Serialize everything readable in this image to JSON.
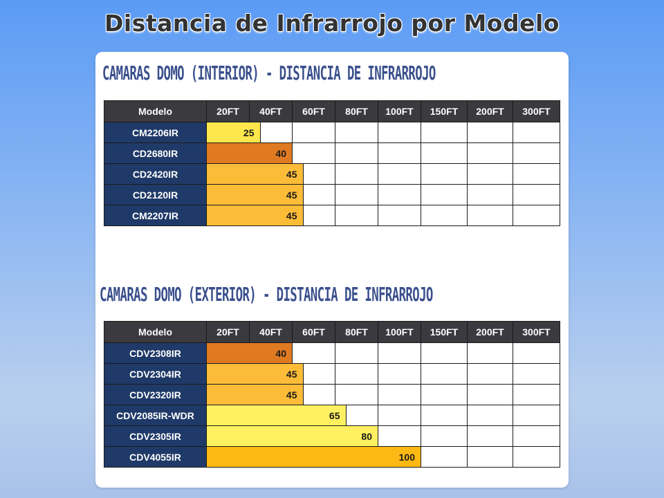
{
  "page_title": "Distancia de Infrarrojo por Modelo",
  "chart_data": [
    {
      "type": "bar",
      "title": "CAMARAS DOMO (INTERIOR) - DISTANCIA DE INFRARROJO",
      "corner_label": "Modelo",
      "columns": [
        "20FT",
        "40FT",
        "60FT",
        "80FT",
        "100FT",
        "150FT",
        "200FT",
        "300FT"
      ],
      "column_values": [
        20,
        40,
        60,
        80,
        100,
        150,
        200,
        300
      ],
      "categories": [
        "CM2206IR",
        "CD2680IR",
        "CD2420IR",
        "CD2120IR",
        "CM2207IR"
      ],
      "values": [
        25,
        40,
        45,
        45,
        45
      ],
      "colors": [
        "#fde74c",
        "#e07a22",
        "#fcbc38",
        "#fcbc38",
        "#fcbc38"
      ]
    },
    {
      "type": "bar",
      "title": "CAMARAS DOMO (EXTERIOR) - DISTANCIA DE INFRARROJO",
      "corner_label": "Modelo",
      "columns": [
        "20FT",
        "40FT",
        "60FT",
        "80FT",
        "100FT",
        "150FT",
        "200FT",
        "300FT"
      ],
      "column_values": [
        20,
        40,
        60,
        80,
        100,
        150,
        200,
        300
      ],
      "categories": [
        "CDV2308IR",
        "CDV2304IR",
        "CDV2320IR",
        "CDV2085IR-WDR",
        "CDV2305IR",
        "CDV4055IR"
      ],
      "values": [
        40,
        45,
        45,
        65,
        80,
        100
      ],
      "colors": [
        "#e07a22",
        "#fcbc38",
        "#fcbc38",
        "#fef060",
        "#fef060",
        "#fdb913"
      ]
    }
  ]
}
